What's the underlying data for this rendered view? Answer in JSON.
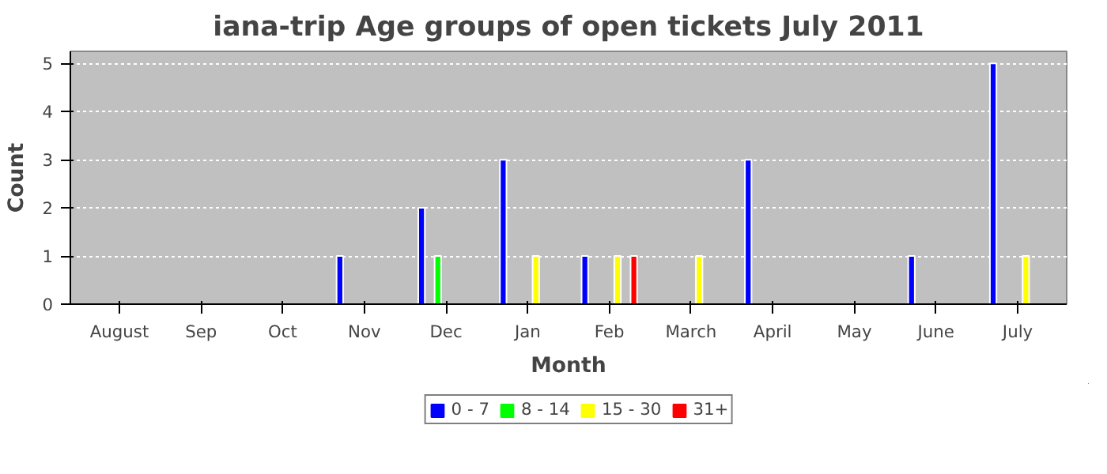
{
  "chart_data": {
    "type": "bar",
    "title": "iana-trip Age groups of open tickets July 2011",
    "xlabel": "Month",
    "ylabel": "Count",
    "categories": [
      "August",
      "Sep",
      "Oct",
      "Nov",
      "Dec",
      "Jan",
      "Feb",
      "March",
      "April",
      "May",
      "June",
      "July"
    ],
    "series": [
      {
        "name": "0 - 7",
        "color": "#0000ff",
        "values": [
          0,
          0,
          0,
          1,
          2,
          3,
          1,
          0,
          3,
          0,
          1,
          5
        ]
      },
      {
        "name": "8 - 14",
        "color": "#00ff00",
        "values": [
          0,
          0,
          0,
          0,
          1,
          0,
          0,
          0,
          0,
          0,
          0,
          0
        ]
      },
      {
        "name": "15 - 30",
        "color": "#ffff00",
        "values": [
          0,
          0,
          0,
          0,
          0,
          1,
          1,
          1,
          0,
          0,
          0,
          1
        ]
      },
      {
        "name": "31+",
        "color": "#ff0000",
        "values": [
          0,
          0,
          0,
          0,
          0,
          0,
          1,
          0,
          0,
          0,
          0,
          0
        ]
      }
    ],
    "ylim": [
      0,
      5.25
    ],
    "yticks": [
      0,
      1,
      2,
      3,
      4,
      5
    ],
    "grid": "y",
    "legend": "bottom"
  }
}
